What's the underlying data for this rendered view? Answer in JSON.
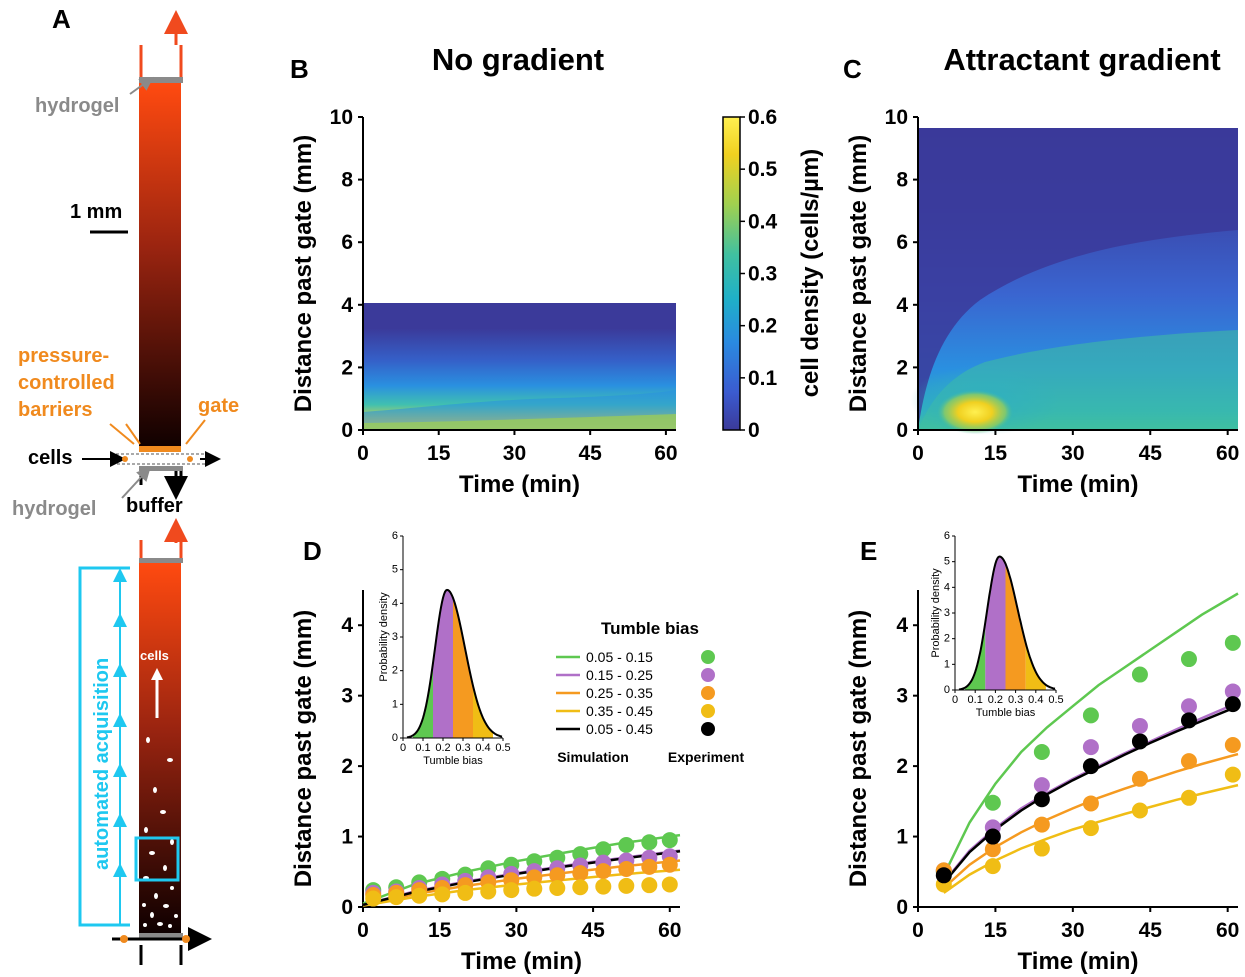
{
  "panels": {
    "A": {
      "label": "A",
      "annotations": {
        "hydrogel_top": "hydrogel",
        "scale_bar": "1 mm",
        "pressure_barriers_1": "pressure-",
        "pressure_barriers_2": "controlled",
        "pressure_barriers_3": "barriers",
        "gate": "gate",
        "cells": "cells",
        "hydrogel_bottom": "hydrogel",
        "buffer": "buffer",
        "automated_acquisition": "automated acquisition",
        "cells_inner": "cells"
      },
      "colors": {
        "top": "#ff4a10",
        "bottom": "#0f0000",
        "cyan": "#1ec8f0",
        "orange": "#f08a1e",
        "gray": "#8a8a8a"
      }
    },
    "B": {
      "label": "B",
      "title": "No gradient"
    },
    "C": {
      "label": "C",
      "title": "Attractant gradient"
    },
    "D": {
      "label": "D"
    },
    "E": {
      "label": "E"
    }
  },
  "colorbar": {
    "label": "cell density (cells/µm)",
    "ticks": [
      "0",
      "0.1",
      "0.2",
      "0.3",
      "0.4",
      "0.5",
      "0.6"
    ],
    "range": [
      0,
      0.6
    ],
    "colors": [
      "#3b3a9a",
      "#3b5bd0",
      "#2a8ae0",
      "#1fb0c8",
      "#40c0a0",
      "#a0d050",
      "#f0d020",
      "#fff050"
    ]
  },
  "legend": {
    "title": "Tumble bias",
    "ranges": [
      "0.05 - 0.15",
      "0.15 - 0.25",
      "0.25 - 0.35",
      "0.35 - 0.45",
      "0.05 - 0.45"
    ],
    "colors": [
      "#5ec850",
      "#b070c8",
      "#f59a20",
      "#f0bd15",
      "#000000"
    ],
    "simulation": "Simulation",
    "experiment": "Experiment"
  },
  "inset": {
    "ylabel": "Probability density",
    "xlabel": "Tumble bias",
    "xticks": [
      "0",
      "0.1",
      "0.2",
      "0.3",
      "0.4",
      "0.5"
    ],
    "yticks": [
      "0",
      "1",
      "2",
      "3",
      "4",
      "5",
      "6"
    ]
  },
  "chart_data": [
    {
      "panel": "B",
      "type": "heatmap",
      "title": "No gradient",
      "xlabel": "Time (min)",
      "ylabel": "Distance past gate (mm)",
      "xlim": [
        0,
        62
      ],
      "ylim": [
        0,
        10
      ],
      "xticks": [
        "0",
        "15",
        "30",
        "45",
        "60"
      ],
      "yticks": [
        "0",
        "2",
        "4",
        "6",
        "8",
        "10"
      ],
      "data_extent_mm": 4,
      "colorbar_range": [
        0,
        0.6
      ]
    },
    {
      "panel": "C",
      "type": "heatmap",
      "title": "Attractant gradient",
      "xlabel": "Time (min)",
      "ylabel": "Distance past gate (mm)",
      "xlim": [
        0,
        62
      ],
      "ylim": [
        0,
        10
      ],
      "xticks": [
        "0",
        "15",
        "30",
        "45",
        "60"
      ],
      "yticks": [
        "0",
        "2",
        "4",
        "6",
        "8",
        "10"
      ],
      "data_extent_mm": 9.6,
      "colorbar_range": [
        0,
        0.6
      ]
    },
    {
      "panel": "D",
      "type": "line",
      "xlabel": "Time (min)",
      "ylabel": "Distance past gate (mm)",
      "xlim": [
        0,
        62
      ],
      "ylim": [
        0,
        4.5
      ],
      "xticks": [
        "0",
        "15",
        "30",
        "45",
        "60"
      ],
      "yticks": [
        "0",
        "1",
        "2",
        "3",
        "4"
      ],
      "simulation": [
        {
          "name": "0.05 - 0.15",
          "color": "#5ec850",
          "x": [
            0,
            10,
            20,
            30,
            40,
            50,
            62
          ],
          "y": [
            0.05,
            0.32,
            0.5,
            0.65,
            0.78,
            0.9,
            1.02
          ]
        },
        {
          "name": "0.15 - 0.25",
          "color": "#b070c8",
          "x": [
            0,
            10,
            20,
            30,
            40,
            50,
            62
          ],
          "y": [
            0.03,
            0.22,
            0.36,
            0.48,
            0.59,
            0.69,
            0.8
          ]
        },
        {
          "name": "0.25 - 0.35",
          "color": "#f59a20",
          "x": [
            0,
            10,
            20,
            30,
            40,
            50,
            62
          ],
          "y": [
            0.03,
            0.18,
            0.3,
            0.4,
            0.49,
            0.57,
            0.66
          ]
        },
        {
          "name": "0.35 - 0.45",
          "color": "#f0bd15",
          "x": [
            0,
            10,
            20,
            30,
            40,
            50,
            62
          ],
          "y": [
            0.02,
            0.14,
            0.24,
            0.32,
            0.39,
            0.46,
            0.53
          ]
        },
        {
          "name": "0.05 - 0.45",
          "color": "#000000",
          "x": [
            0,
            10,
            20,
            30,
            40,
            50,
            62
          ],
          "y": [
            0.03,
            0.21,
            0.35,
            0.47,
            0.58,
            0.68,
            0.79
          ]
        }
      ],
      "experiment": [
        {
          "name": "0.05 - 0.15",
          "color": "#5ec850",
          "x": [
            2,
            6.5,
            11,
            15.5,
            20,
            24.5,
            29,
            33.5,
            38,
            42.5,
            47,
            51.5,
            56,
            60
          ],
          "y": [
            0.24,
            0.28,
            0.35,
            0.4,
            0.46,
            0.55,
            0.6,
            0.65,
            0.7,
            0.75,
            0.82,
            0.88,
            0.92,
            0.95
          ]
        },
        {
          "name": "0.15 - 0.25",
          "color": "#b070c8",
          "x": [
            2,
            6.5,
            11,
            15.5,
            20,
            24.5,
            29,
            33.5,
            38,
            42.5,
            47,
            51.5,
            56,
            60
          ],
          "y": [
            0.2,
            0.22,
            0.27,
            0.32,
            0.37,
            0.42,
            0.47,
            0.51,
            0.55,
            0.59,
            0.63,
            0.66,
            0.7,
            0.72
          ]
        },
        {
          "name": "0.25 - 0.35",
          "color": "#f59a20",
          "x": [
            2,
            6.5,
            11,
            15.5,
            20,
            24.5,
            29,
            33.5,
            38,
            42.5,
            47,
            51.5,
            56,
            60
          ],
          "y": [
            0.17,
            0.2,
            0.24,
            0.27,
            0.31,
            0.35,
            0.38,
            0.42,
            0.45,
            0.48,
            0.51,
            0.54,
            0.57,
            0.6
          ]
        },
        {
          "name": "0.35 - 0.45",
          "color": "#f0bd15",
          "x": [
            2,
            6.5,
            11,
            15.5,
            20,
            24.5,
            29,
            33.5,
            38,
            42.5,
            47,
            51.5,
            56,
            60
          ],
          "y": [
            0.12,
            0.14,
            0.16,
            0.18,
            0.2,
            0.22,
            0.24,
            0.26,
            0.27,
            0.28,
            0.29,
            0.3,
            0.31,
            0.32
          ]
        }
      ]
    },
    {
      "panel": "E",
      "type": "line",
      "xlabel": "Time (min)",
      "ylabel": "Distance past gate (mm)",
      "xlim": [
        0,
        62
      ],
      "ylim": [
        0,
        4.5
      ],
      "xticks": [
        "0",
        "15",
        "30",
        "45",
        "60"
      ],
      "yticks": [
        "0",
        "1",
        "2",
        "3",
        "4"
      ],
      "simulation": [
        {
          "name": "0.05 - 0.15",
          "color": "#5ec850",
          "x": [
            5,
            10,
            15,
            20,
            25,
            30,
            35,
            40,
            45,
            50,
            55,
            62
          ],
          "y": [
            0.45,
            1.2,
            1.75,
            2.2,
            2.55,
            2.85,
            3.15,
            3.4,
            3.65,
            3.9,
            4.15,
            4.45
          ]
        },
        {
          "name": "0.15 - 0.25",
          "color": "#b070c8",
          "x": [
            5,
            10,
            15,
            20,
            25,
            30,
            35,
            40,
            45,
            50,
            55,
            62
          ],
          "y": [
            0.35,
            0.8,
            1.12,
            1.4,
            1.62,
            1.82,
            2.0,
            2.18,
            2.35,
            2.52,
            2.68,
            2.9
          ]
        },
        {
          "name": "0.25 - 0.35",
          "color": "#f59a20",
          "x": [
            5,
            10,
            15,
            20,
            25,
            30,
            35,
            40,
            45,
            50,
            55,
            62
          ],
          "y": [
            0.27,
            0.6,
            0.85,
            1.06,
            1.24,
            1.4,
            1.55,
            1.68,
            1.8,
            1.92,
            2.03,
            2.17
          ]
        },
        {
          "name": "0.35 - 0.45",
          "color": "#f0bd15",
          "x": [
            5,
            10,
            15,
            20,
            25,
            30,
            35,
            40,
            45,
            50,
            55,
            62
          ],
          "y": [
            0.2,
            0.46,
            0.66,
            0.83,
            0.97,
            1.1,
            1.21,
            1.32,
            1.42,
            1.52,
            1.61,
            1.73
          ]
        },
        {
          "name": "0.05 - 0.45",
          "color": "#000000",
          "x": [
            5,
            10,
            15,
            20,
            25,
            30,
            35,
            40,
            45,
            50,
            55,
            62
          ],
          "y": [
            0.34,
            0.78,
            1.1,
            1.37,
            1.6,
            1.8,
            1.98,
            2.16,
            2.33,
            2.49,
            2.64,
            2.85
          ]
        }
      ],
      "experiment": [
        {
          "name": "0.05 - 0.15",
          "color": "#5ec850",
          "x": [
            5,
            14.5,
            24,
            33.5,
            43,
            52.5,
            61
          ],
          "y": [
            0.5,
            1.48,
            2.2,
            2.72,
            3.3,
            3.52,
            3.75
          ]
        },
        {
          "name": "0.15 - 0.25",
          "color": "#b070c8",
          "x": [
            5,
            14.5,
            24,
            33.5,
            43,
            52.5,
            61
          ],
          "y": [
            0.52,
            1.13,
            1.73,
            2.27,
            2.57,
            2.85,
            3.06
          ]
        },
        {
          "name": "0.25 - 0.35",
          "color": "#f59a20",
          "x": [
            5,
            14.5,
            24,
            33.5,
            43,
            52.5,
            61
          ],
          "y": [
            0.52,
            0.82,
            1.17,
            1.47,
            1.82,
            2.07,
            2.3
          ]
        },
        {
          "name": "0.35 - 0.45",
          "color": "#f0bd15",
          "x": [
            5,
            14.5,
            24,
            33.5,
            43,
            52.5,
            61
          ],
          "y": [
            0.32,
            0.58,
            0.83,
            1.12,
            1.37,
            1.55,
            1.88
          ]
        },
        {
          "name": "0.05 - 0.45",
          "color": "#000000",
          "x": [
            5,
            14.5,
            24,
            33.5,
            43,
            52.5,
            61
          ],
          "y": [
            0.45,
            1.0,
            1.53,
            2.0,
            2.35,
            2.65,
            2.88
          ]
        }
      ]
    }
  ]
}
